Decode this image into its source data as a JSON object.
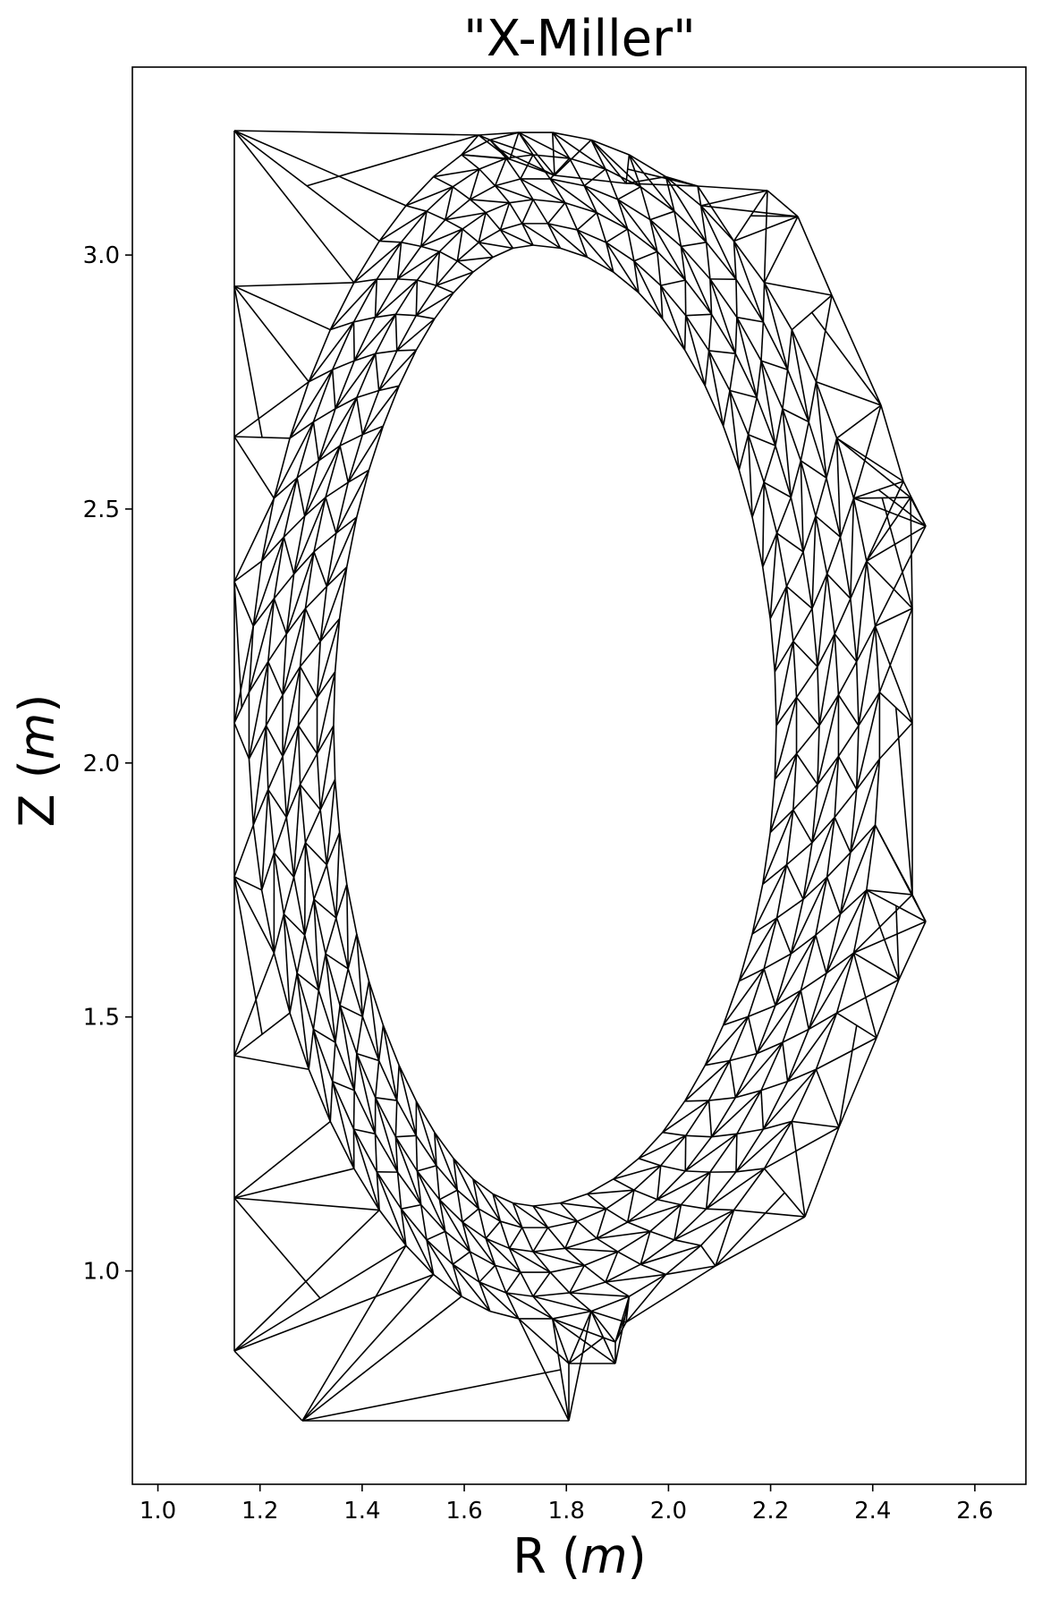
{
  "chart_data": {
    "type": "mesh",
    "title": "\"X-Miller\"",
    "xlabel_prefix": "R (",
    "xlabel_var": "m",
    "xlabel_suffix": ")",
    "ylabel_prefix": "Z (",
    "ylabel_var": "m",
    "ylabel_suffix": ")",
    "xlim": [
      0.95,
      2.7
    ],
    "ylim": [
      0.58,
      3.37
    ],
    "xticks": [
      1.0,
      1.2,
      1.4,
      1.6,
      1.8,
      2.0,
      2.2,
      2.4,
      2.6
    ],
    "xtick_labels": [
      "1.0",
      "1.2",
      "1.4",
      "1.6",
      "1.8",
      "2.0",
      "2.2",
      "2.4",
      "2.6"
    ],
    "yticks": [
      1.0,
      1.5,
      2.0,
      2.5,
      3.0
    ],
    "ytick_labels": [
      "1.0",
      "1.5",
      "2.0",
      "2.5",
      "3.0"
    ],
    "grid": false,
    "line_color": "#000000"
  }
}
